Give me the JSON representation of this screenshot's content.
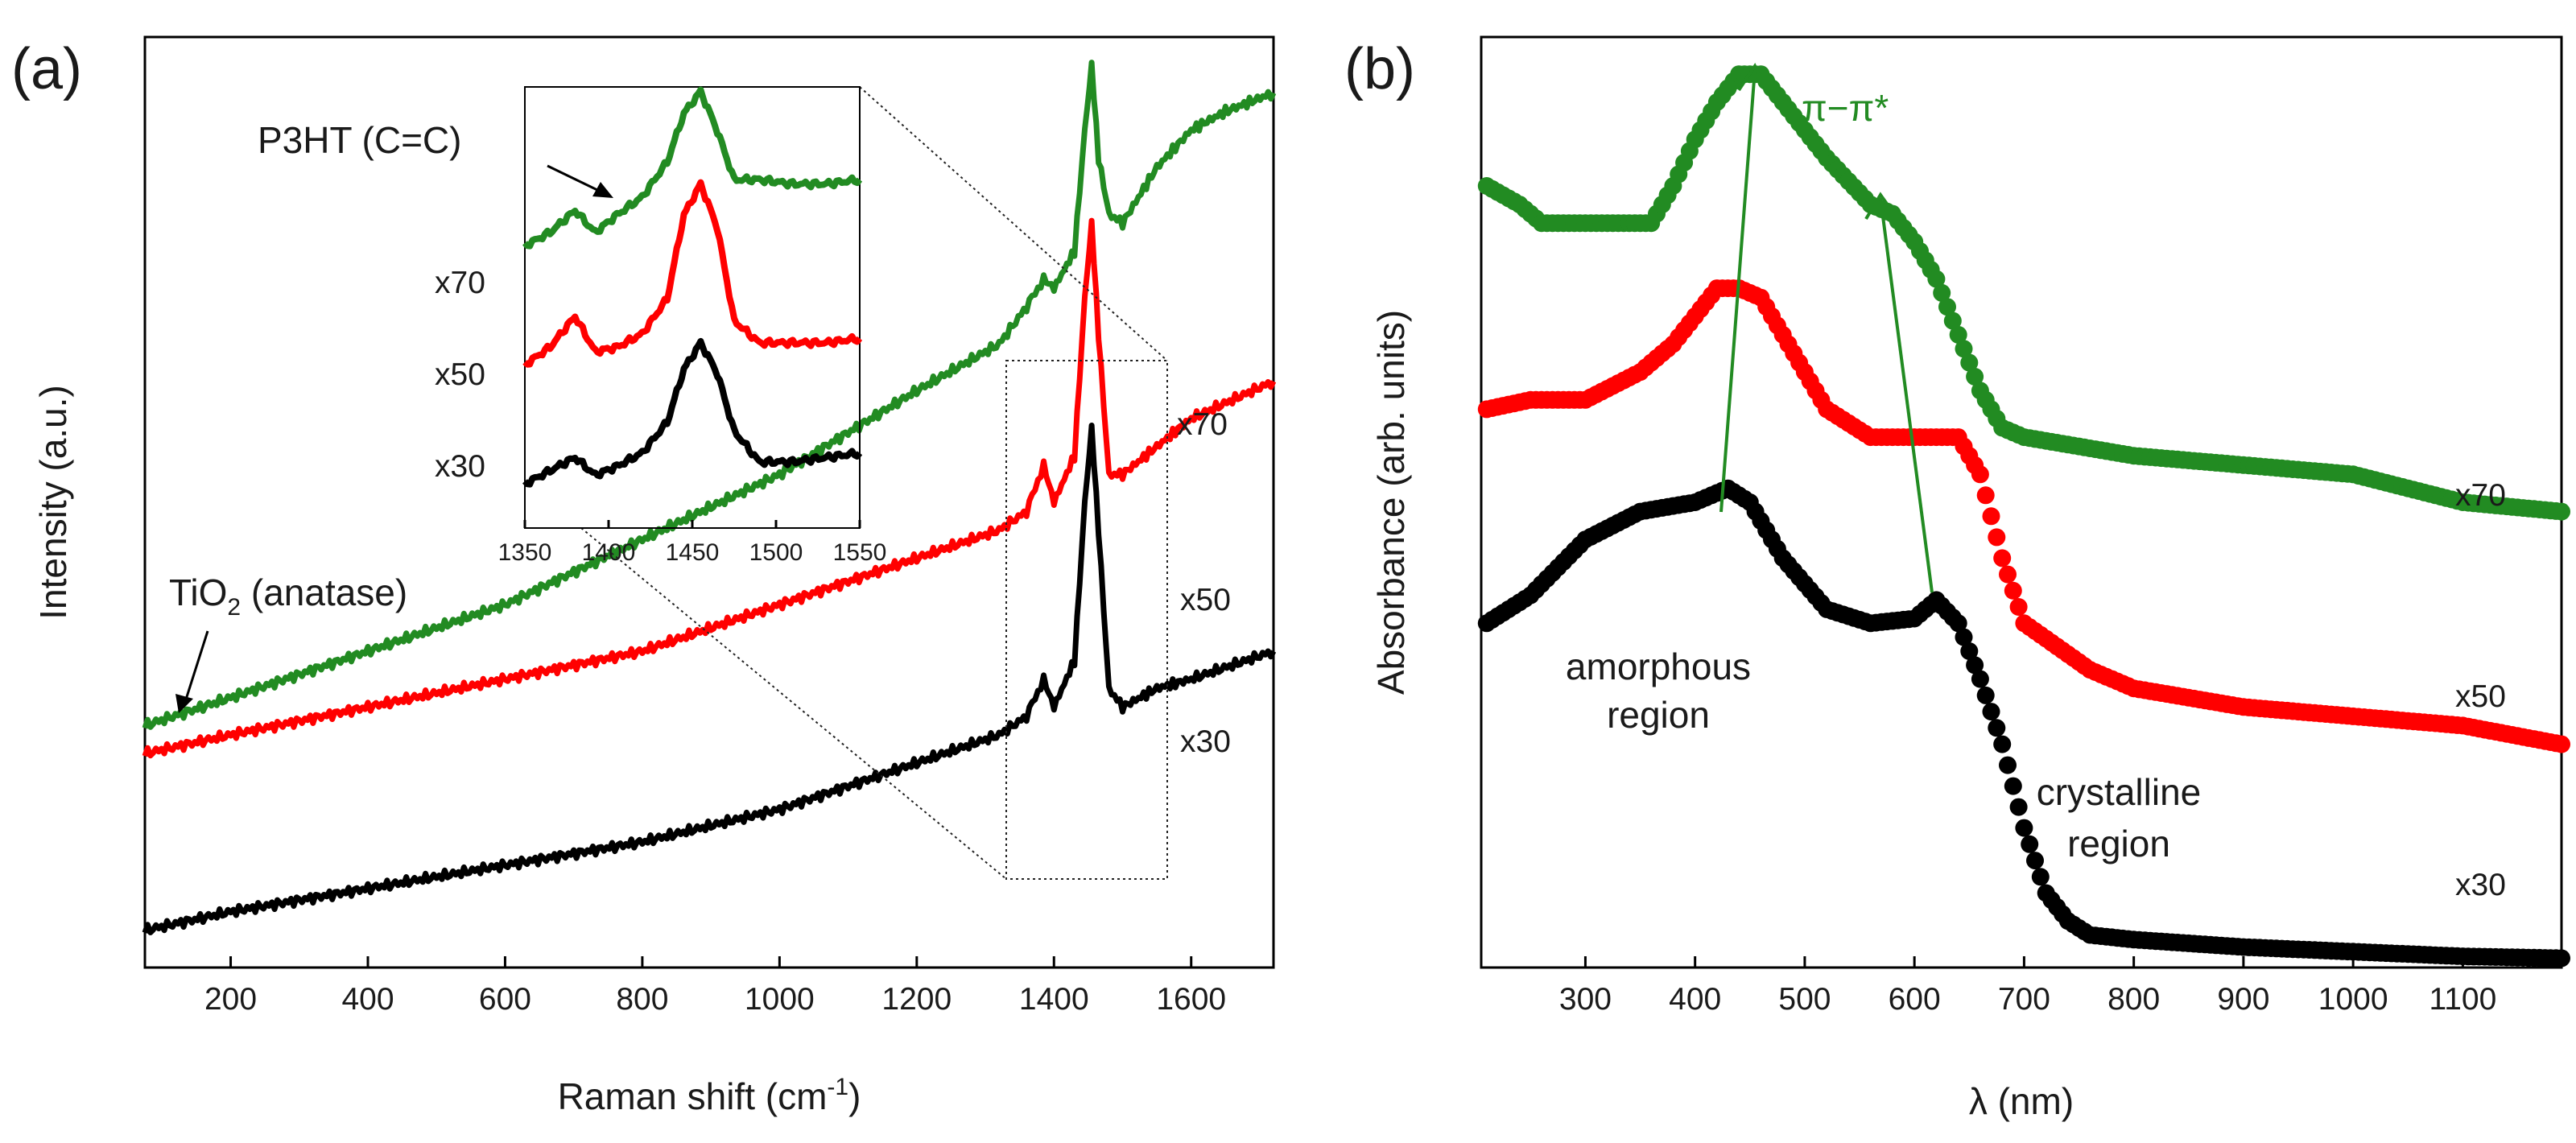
{
  "figure": {
    "panel_a_label": "(a)",
    "panel_b_label": "(b)"
  },
  "colors": {
    "x30": "#000000",
    "x50": "#ff0000",
    "x70": "#228b22",
    "arrow": "#228b22"
  },
  "chart_data": [
    {
      "id": "raman",
      "type": "line",
      "title": "",
      "xlabel": "Raman shift (cm",
      "xlabel_sup": "-1",
      "xlabel_end": ")",
      "ylabel": "Intensity (a.u.)",
      "xlim": [
        75,
        1720
      ],
      "ylim": [
        0,
        1
      ],
      "xticks": [
        200,
        400,
        600,
        800,
        1000,
        1200,
        1400,
        1600
      ],
      "xtick_labels": [
        "200",
        "400",
        "600",
        "800",
        "1000",
        "1200",
        "1400",
        "1600"
      ],
      "series": [
        {
          "name": "x30",
          "color": "#000000",
          "x": [
            75,
            200,
            400,
            600,
            800,
            1000,
            1200,
            1320,
            1360,
            1385,
            1400,
            1430,
            1445,
            1455,
            1465,
            1480,
            1500,
            1550,
            1600,
            1720
          ],
          "y": [
            0.04,
            0.06,
            0.085,
            0.11,
            0.135,
            0.17,
            0.22,
            0.25,
            0.27,
            0.31,
            0.28,
            0.33,
            0.5,
            0.58,
            0.47,
            0.3,
            0.28,
            0.3,
            0.31,
            0.34
          ]
        },
        {
          "name": "x50",
          "color": "#ff0000",
          "x": [
            75,
            200,
            400,
            600,
            800,
            1000,
            1200,
            1320,
            1360,
            1385,
            1400,
            1430,
            1445,
            1455,
            1465,
            1480,
            1500,
            1550,
            1600,
            1720
          ],
          "y": [
            0.23,
            0.25,
            0.28,
            0.31,
            0.34,
            0.39,
            0.44,
            0.47,
            0.49,
            0.54,
            0.5,
            0.55,
            0.72,
            0.8,
            0.68,
            0.53,
            0.53,
            0.56,
            0.59,
            0.63
          ]
        },
        {
          "name": "x70",
          "color": "#228b22",
          "x": [
            75,
            200,
            400,
            600,
            800,
            1000,
            1200,
            1320,
            1360,
            1385,
            1400,
            1430,
            1445,
            1455,
            1465,
            1480,
            1500,
            1550,
            1600,
            1650,
            1720
          ],
          "y": [
            0.26,
            0.29,
            0.34,
            0.39,
            0.46,
            0.53,
            0.62,
            0.67,
            0.71,
            0.74,
            0.73,
            0.77,
            0.9,
            0.97,
            0.87,
            0.81,
            0.8,
            0.86,
            0.9,
            0.92,
            0.94
          ]
        }
      ],
      "curve_labels": [
        "x70",
        "x50",
        "x30"
      ],
      "annotations": {
        "tio2_main": "TiO",
        "tio2_sub": "2",
        "tio2_end": " (anatase)",
        "p3ht": "P3HT (C=C)"
      }
    },
    {
      "id": "raman_inset",
      "type": "line",
      "xlim": [
        1350,
        1550
      ],
      "xticks": [
        1350,
        1400,
        1450,
        1500,
        1550
      ],
      "xtick_labels": [
        "1350",
        "1400",
        "1450",
        "1500",
        "1550"
      ],
      "ylim": [
        0,
        1
      ],
      "series": [
        {
          "name": "x30",
          "color": "#000000",
          "x": [
            1350,
            1365,
            1380,
            1392,
            1405,
            1420,
            1435,
            1445,
            1455,
            1465,
            1475,
            1490,
            1510,
            1530,
            1550
          ],
          "y": [
            0.1,
            0.13,
            0.16,
            0.12,
            0.14,
            0.17,
            0.24,
            0.36,
            0.42,
            0.35,
            0.22,
            0.15,
            0.15,
            0.16,
            0.17
          ]
        },
        {
          "name": "x50",
          "color": "#ff0000",
          "x": [
            1350,
            1365,
            1380,
            1392,
            1405,
            1420,
            1435,
            1445,
            1455,
            1465,
            1475,
            1490,
            1510,
            1530,
            1550
          ],
          "y": [
            0.37,
            0.41,
            0.48,
            0.4,
            0.41,
            0.44,
            0.52,
            0.71,
            0.78,
            0.68,
            0.47,
            0.42,
            0.42,
            0.42,
            0.43
          ]
        },
        {
          "name": "x70",
          "color": "#228b22",
          "x": [
            1350,
            1365,
            1380,
            1392,
            1405,
            1420,
            1435,
            1445,
            1455,
            1465,
            1475,
            1490,
            1510,
            1530,
            1550
          ],
          "y": [
            0.64,
            0.67,
            0.72,
            0.67,
            0.71,
            0.75,
            0.83,
            0.94,
            0.99,
            0.9,
            0.79,
            0.79,
            0.78,
            0.78,
            0.79
          ]
        }
      ],
      "curve_labels": [
        "x70",
        "x50",
        "x30"
      ]
    },
    {
      "id": "absorbance",
      "type": "scatter",
      "title": "",
      "xlabel": "λ (nm)",
      "ylabel": "Absorbance (arb. units)",
      "xlim": [
        205,
        1190
      ],
      "ylim": [
        0,
        1
      ],
      "xticks": [
        300,
        400,
        500,
        600,
        700,
        800,
        900,
        1000,
        1100
      ],
      "xtick_labels": [
        "300",
        "400",
        "500",
        "600",
        "700",
        "800",
        "900",
        "1000",
        "1100"
      ],
      "series": [
        {
          "name": "x30",
          "color": "#000000",
          "x": [
            210,
            250,
            300,
            350,
            400,
            430,
            450,
            480,
            520,
            560,
            600,
            620,
            640,
            660,
            680,
            700,
            720,
            740,
            760,
            800,
            900,
            1000,
            1100,
            1190
          ],
          "y": [
            0.37,
            0.4,
            0.46,
            0.49,
            0.5,
            0.515,
            0.5,
            0.44,
            0.385,
            0.37,
            0.375,
            0.395,
            0.37,
            0.31,
            0.24,
            0.15,
            0.08,
            0.05,
            0.035,
            0.03,
            0.022,
            0.017,
            0.012,
            0.01
          ]
        },
        {
          "name": "x70",
          "color": "#228b22",
          "x": [
            210,
            240,
            260,
            300,
            360,
            380,
            400,
            420,
            440,
            460,
            480,
            520,
            560,
            580,
            600,
            620,
            640,
            660,
            680,
            700,
            800,
            900,
            1000,
            1100,
            1190
          ],
          "y": [
            0.84,
            0.82,
            0.8,
            0.8,
            0.8,
            0.84,
            0.89,
            0.93,
            0.96,
            0.96,
            0.93,
            0.87,
            0.82,
            0.81,
            0.78,
            0.74,
            0.68,
            0.62,
            0.58,
            0.57,
            0.55,
            0.54,
            0.53,
            0.5,
            0.49
          ]
        },
        {
          "name": "x50",
          "color": "#ff0000",
          "x": [
            210,
            250,
            300,
            350,
            380,
            400,
            420,
            440,
            460,
            480,
            520,
            560,
            600,
            640,
            660,
            680,
            700,
            760,
            800,
            900,
            1000,
            1100,
            1190
          ],
          "y": [
            0.6,
            0.61,
            0.61,
            0.64,
            0.67,
            0.7,
            0.73,
            0.73,
            0.72,
            0.68,
            0.6,
            0.57,
            0.57,
            0.57,
            0.53,
            0.44,
            0.37,
            0.32,
            0.3,
            0.28,
            0.27,
            0.26,
            0.24
          ]
        }
      ],
      "curve_labels": [
        "x70",
        "x50",
        "x30"
      ],
      "annotations": {
        "pi": "π−π*",
        "amorphous_1": "amorphous",
        "amorphous_2": "region",
        "crystalline_1": "crystalline",
        "crystalline_2": "region"
      }
    }
  ]
}
